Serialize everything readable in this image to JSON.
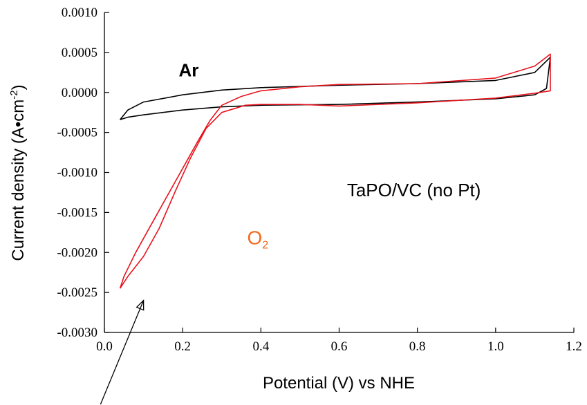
{
  "chart_data": {
    "type": "line",
    "xlabel": "Potential (V) vs NHE",
    "ylabel": "Current density (A•cm",
    "ylabel_sup": "-2",
    "ylabel_end": ")",
    "xlim": [
      0.0,
      1.2
    ],
    "ylim": [
      -0.003,
      0.001
    ],
    "x_ticks": [
      0.0,
      0.2,
      0.4,
      0.6,
      0.8,
      1.0,
      1.2
    ],
    "x_tick_labels": [
      "0.0",
      "0.2",
      "0.4",
      "0.6",
      "0.8",
      "1.0",
      "1.2"
    ],
    "y_ticks": [
      -0.003,
      -0.0025,
      -0.002,
      -0.0015,
      -0.001,
      -0.0005,
      0.0,
      0.0005,
      0.001
    ],
    "y_tick_labels": [
      "-0.0030",
      "-0.0025",
      "-0.0020",
      "-0.0015",
      "-0.0010",
      "-0.0005",
      "0.0000",
      "0.0005",
      "0.0010"
    ],
    "grid": false,
    "series": [
      {
        "name": "Ar",
        "color": "#000000",
        "x": [
          0.04,
          0.06,
          0.1,
          0.2,
          0.3,
          0.4,
          0.6,
          0.8,
          1.0,
          1.1,
          1.14,
          1.13,
          1.1,
          1.0,
          0.8,
          0.6,
          0.4,
          0.3,
          0.2,
          0.1,
          0.06,
          0.04
        ],
        "y": [
          -0.00034,
          -0.00022,
          -0.00012,
          -3e-05,
          3e-05,
          6e-05,
          9e-05,
          0.00011,
          0.00015,
          0.00025,
          0.00044,
          5e-05,
          -3e-05,
          -8e-05,
          -0.00012,
          -0.00015,
          -0.00016,
          -0.00018,
          -0.00022,
          -0.00028,
          -0.00031,
          -0.00034
        ]
      },
      {
        "name": "O",
        "name_sub": "2",
        "color": "#e8121c",
        "x": [
          0.04,
          0.06,
          0.1,
          0.14,
          0.18,
          0.22,
          0.26,
          0.3,
          0.36,
          0.4,
          0.5,
          0.6,
          0.8,
          1.0,
          1.1,
          1.14,
          1.14,
          1.1,
          1.0,
          0.8,
          0.6,
          0.5,
          0.4,
          0.35,
          0.3,
          0.27,
          0.24,
          0.2,
          0.16,
          0.12,
          0.08,
          0.05,
          0.04
        ],
        "y": [
          -0.00245,
          -0.0023,
          -0.00205,
          -0.0017,
          -0.00125,
          -0.00082,
          -0.00045,
          -0.00025,
          -0.00016,
          -0.00015,
          -0.00015,
          -0.00017,
          -0.00013,
          -7e-05,
          -1e-05,
          2e-05,
          0.00048,
          0.00033,
          0.00018,
          0.00011,
          0.0001,
          7e-05,
          2e-05,
          -5e-05,
          -0.00016,
          -0.00035,
          -0.0006,
          -0.00095,
          -0.0013,
          -0.00165,
          -0.002,
          -0.0023,
          -0.00245
        ]
      }
    ],
    "annotations": [
      {
        "id": "ar",
        "text": "Ar",
        "x": 0.19,
        "y": 0.0002
      },
      {
        "id": "o2",
        "text": "O",
        "sub": "2",
        "x": 0.365,
        "y": -0.0019
      },
      {
        "id": "label",
        "text": "TaPO/VC (no Pt)",
        "x": 0.62,
        "y": -0.0013
      }
    ],
    "arrow": {
      "from": [
        -0.01,
        -0.0039
      ],
      "to": [
        0.1,
        -0.0026
      ]
    }
  }
}
